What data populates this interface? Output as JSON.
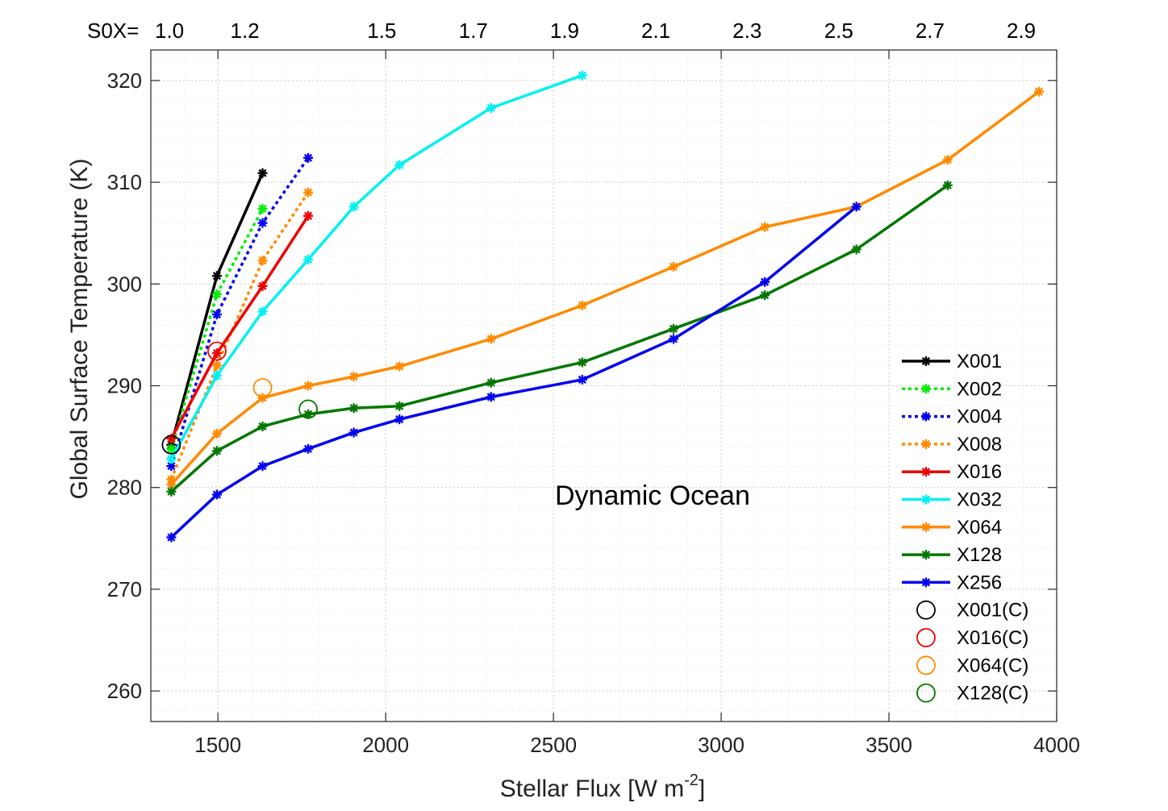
{
  "chart_data": {
    "type": "line",
    "xlabel_main": "Stellar Flux [W m",
    "xlabel_sup": "-2",
    "xlabel_end": "]",
    "ylabel": "Global Surface Temperature (K)",
    "annotation": "Dynamic Ocean",
    "xlim": [
      1300,
      4000
    ],
    "ylim": [
      257,
      323
    ],
    "xticks": [
      1500,
      2000,
      2500,
      3000,
      3500,
      4000
    ],
    "yticks": [
      260,
      270,
      280,
      290,
      300,
      310,
      320
    ],
    "grid": true,
    "minor_grid": true,
    "legend_position": "bottom-right",
    "top_axis": {
      "prefix": "S0X=",
      "labels": [
        {
          "text": "1.0",
          "flux": 1361
        },
        {
          "text": "1.2",
          "flux": 1633
        },
        {
          "text": "1.5",
          "flux": 2041
        },
        {
          "text": "1.7",
          "flux": 2314
        },
        {
          "text": "1.9",
          "flux": 2586
        },
        {
          "text": "2.1",
          "flux": 2858
        },
        {
          "text": "2.3",
          "flux": 3130
        },
        {
          "text": "2.5",
          "flux": 3403
        },
        {
          "text": "2.7",
          "flux": 3675
        },
        {
          "text": "2.9",
          "flux": 3947
        }
      ]
    },
    "series": [
      {
        "name": "X001",
        "color": "#000000",
        "dash": "solid",
        "x": [
          1361,
          1497,
          1633
        ],
        "y": [
          284.2,
          300.8,
          310.9
        ]
      },
      {
        "name": "X002",
        "color": "#00ee00",
        "dash": "dotted",
        "x": [
          1361,
          1497,
          1633
        ],
        "y": [
          283.8,
          299.0,
          307.4
        ]
      },
      {
        "name": "X004",
        "color": "#0000ee",
        "dash": "dotted",
        "x": [
          1361,
          1497,
          1633,
          1769
        ],
        "y": [
          282.1,
          297.0,
          306.0,
          312.4
        ]
      },
      {
        "name": "X008",
        "color": "#ff8a00",
        "dash": "dotted",
        "x": [
          1361,
          1497,
          1633,
          1769
        ],
        "y": [
          280.8,
          292.0,
          302.3,
          309.0
        ]
      },
      {
        "name": "X016",
        "color": "#ee0000",
        "dash": "solid",
        "x": [
          1361,
          1497,
          1633,
          1769
        ],
        "y": [
          284.8,
          293.2,
          299.8,
          306.7
        ]
      },
      {
        "name": "X032",
        "color": "#00f0f0",
        "dash": "solid",
        "x": [
          1361,
          1497,
          1633,
          1769,
          1905,
          2041,
          2314,
          2586
        ],
        "y": [
          282.8,
          291.0,
          297.3,
          302.4,
          307.6,
          311.7,
          317.3,
          320.5
        ]
      },
      {
        "name": "X064",
        "color": "#ff8a00",
        "dash": "solid",
        "x": [
          1361,
          1497,
          1633,
          1769,
          1905,
          2041,
          2314,
          2586,
          2858,
          3130,
          3403,
          3675,
          3947
        ],
        "y": [
          280.3,
          285.3,
          288.8,
          290.0,
          290.9,
          291.9,
          294.6,
          297.9,
          301.7,
          305.6,
          307.6,
          312.2,
          318.9
        ]
      },
      {
        "name": "X128",
        "color": "#007700",
        "dash": "solid",
        "x": [
          1361,
          1497,
          1633,
          1769,
          1905,
          2041,
          2314,
          2586,
          2858,
          3130,
          3403,
          3675
        ],
        "y": [
          279.6,
          283.6,
          286.0,
          287.2,
          287.8,
          288.0,
          290.3,
          292.3,
          295.6,
          298.9,
          303.4,
          309.7
        ]
      },
      {
        "name": "X256",
        "color": "#0000ee",
        "dash": "solid",
        "x": [
          1361,
          1497,
          1633,
          1769,
          1905,
          2041,
          2314,
          2586,
          2858,
          3130,
          3403
        ],
        "y": [
          275.1,
          279.3,
          282.1,
          283.8,
          285.4,
          286.7,
          288.9,
          290.6,
          294.6,
          300.2,
          307.6
        ]
      }
    ],
    "circles": [
      {
        "name": "X001(C)",
        "color": "#000000",
        "x": 1361,
        "y": 284.2
      },
      {
        "name": "X016(C)",
        "color": "#ee0000",
        "x": 1497,
        "y": 293.4
      },
      {
        "name": "X064(C)",
        "color": "#ff8a00",
        "x": 1633,
        "y": 289.8
      },
      {
        "name": "X128(C)",
        "color": "#007700",
        "x": 1769,
        "y": 287.7
      }
    ]
  }
}
